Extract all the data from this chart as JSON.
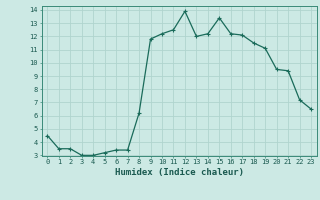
{
  "x": [
    0,
    1,
    2,
    3,
    4,
    5,
    6,
    7,
    8,
    9,
    10,
    11,
    12,
    13,
    14,
    15,
    16,
    17,
    18,
    19,
    20,
    21,
    22,
    23
  ],
  "y": [
    4.5,
    3.5,
    3.5,
    3.0,
    3.0,
    3.2,
    3.4,
    3.4,
    6.2,
    11.8,
    12.2,
    12.5,
    13.9,
    12.0,
    12.2,
    13.4,
    12.2,
    12.1,
    11.5,
    11.1,
    9.5,
    9.4,
    7.2,
    6.5
  ],
  "line_color": "#1a6b5a",
  "marker": "+",
  "marker_size": 3,
  "marker_lw": 0.8,
  "bg_color": "#cce9e4",
  "grid_color": "#b0d4ce",
  "xlabel": "Humidex (Indice chaleur)",
  "ylim": [
    3,
    14
  ],
  "xlim": [
    -0.5,
    23.5
  ],
  "yticks": [
    3,
    4,
    5,
    6,
    7,
    8,
    9,
    10,
    11,
    12,
    13,
    14
  ],
  "xticks": [
    0,
    1,
    2,
    3,
    4,
    5,
    6,
    7,
    8,
    9,
    10,
    11,
    12,
    13,
    14,
    15,
    16,
    17,
    18,
    19,
    20,
    21,
    22,
    23
  ],
  "tick_label_fontsize": 5.0,
  "xlabel_fontsize": 6.5,
  "line_width": 0.9
}
